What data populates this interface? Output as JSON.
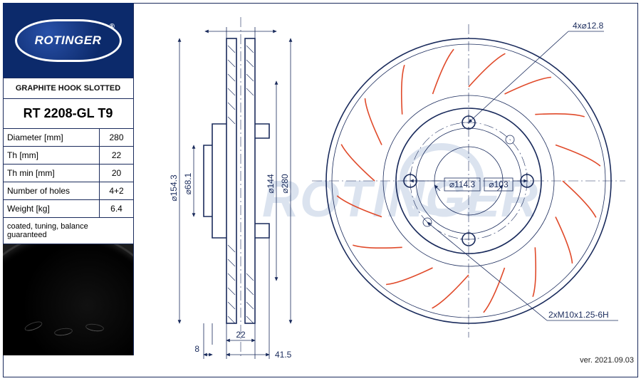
{
  "brand": "ROTINGER",
  "subtitle": "GRAPHITE HOOK SLOTTED",
  "part_number": "RT 2208-GL T9",
  "specs": [
    {
      "label": "Diameter [mm]",
      "value": "280"
    },
    {
      "label": "Th [mm]",
      "value": "22"
    },
    {
      "label": "Th min [mm]",
      "value": "20"
    },
    {
      "label": "Number of holes",
      "value": "4+2"
    },
    {
      "label": "Weight [kg]",
      "value": "6.4"
    }
  ],
  "note": "coated, tuning, balance guaranteed",
  "version": "ver. 2021.09.03",
  "watermark": "ROTINGER",
  "colors": {
    "line": "#1a2b5c",
    "hook": "#e04a2a",
    "logo_bg": "#0c2a6b",
    "watermark": "#dbe3ef"
  },
  "side_view": {
    "dims": {
      "d154_3": "⌀154.3",
      "d68_1": "⌀68.1",
      "d144": "⌀144",
      "d280": "⌀280",
      "t8": "8",
      "t22": "22",
      "t41_5": "41.5"
    }
  },
  "front_view": {
    "callout_holes": "4x⌀12.8",
    "callout_thread": "2xM10x1.25-6H",
    "pcd": "⌀114.3",
    "hub": "⌀103",
    "outer_d": 280,
    "hook_count": 16
  }
}
